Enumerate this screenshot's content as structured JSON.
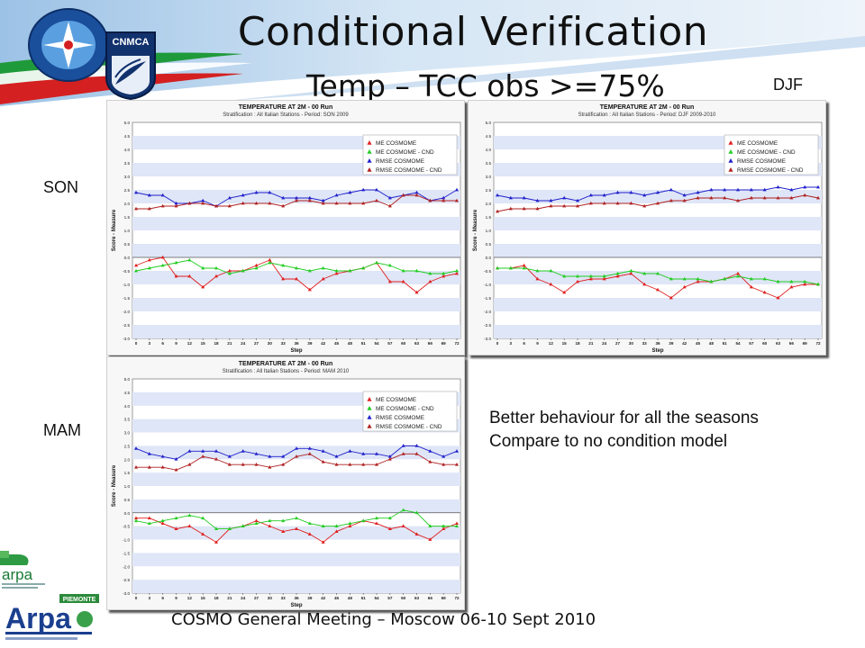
{
  "slide": {
    "title": "Conditional Verification",
    "subtitle": "Temp – TCC obs >=75%",
    "footer": "COSMO General Meeting – Moscow 06-10 Sept 2010",
    "note_lines": [
      "Better behaviour  for all the seasons",
      "Compare to no condition model"
    ],
    "season_labels": {
      "son": "SON",
      "djf": "DJF",
      "mam": "MAM"
    },
    "logos": {
      "cnmca": "CNMCA",
      "arpa": "arpa",
      "arpa_piemonte_top": "PIEMONTE",
      "arpa_piemonte_main": "Arpa"
    }
  },
  "colors": {
    "me": "#e02020",
    "me_cnd": "#22cc22",
    "rmse": "#2020cc",
    "rmse_cnd": "#b02020"
  },
  "chart_data": [
    {
      "type": "line",
      "title": "TEMPERATURE AT 2M - 00 Run",
      "subtitle": "Stratification : All Italian Stations - Period: SON 2009",
      "xlabel": "Step",
      "ylabel": "Score - Measure",
      "ylim": [
        -3.0,
        5.0
      ],
      "grid": true,
      "legend": "top-right",
      "x": [
        0,
        3,
        6,
        9,
        12,
        15,
        18,
        21,
        24,
        27,
        30,
        33,
        36,
        39,
        42,
        45,
        48,
        51,
        54,
        57,
        60,
        63,
        66,
        69,
        72
      ],
      "yticks": [
        "5.0",
        "4.5",
        "4.0",
        "3.5",
        "3.0",
        "2.5",
        "2.0",
        "1.5",
        "1.0",
        "0.5",
        "0.0",
        "-0.5",
        "-1.0",
        "-1.5",
        "-2.0",
        "-2.5",
        "-3.0"
      ],
      "series": [
        {
          "name": "ME COSMOME",
          "color": "#e02020",
          "values": [
            -0.3,
            -0.1,
            0.0,
            -0.7,
            -0.7,
            -1.1,
            -0.7,
            -0.5,
            -0.5,
            -0.3,
            -0.1,
            -0.8,
            -0.8,
            -1.2,
            -0.8,
            -0.6,
            -0.5,
            -0.4,
            -0.2,
            -0.9,
            -0.9,
            -1.3,
            -0.9,
            -0.7,
            -0.6
          ]
        },
        {
          "name": "ME COSMOME - CND",
          "color": "#22cc22",
          "values": [
            -0.5,
            -0.4,
            -0.3,
            -0.2,
            -0.1,
            -0.4,
            -0.4,
            -0.6,
            -0.5,
            -0.4,
            -0.2,
            -0.3,
            -0.4,
            -0.5,
            -0.4,
            -0.5,
            -0.5,
            -0.4,
            -0.2,
            -0.3,
            -0.5,
            -0.5,
            -0.6,
            -0.6,
            -0.5
          ]
        },
        {
          "name": "RMSE COSMOME",
          "color": "#2020cc",
          "values": [
            2.4,
            2.3,
            2.3,
            2.0,
            2.0,
            2.1,
            1.9,
            2.2,
            2.3,
            2.4,
            2.4,
            2.2,
            2.2,
            2.2,
            2.1,
            2.3,
            2.4,
            2.5,
            2.5,
            2.2,
            2.3,
            2.4,
            2.1,
            2.2,
            2.5
          ]
        },
        {
          "name": "RMSE COSMOME - CND",
          "color": "#b02020",
          "values": [
            1.8,
            1.8,
            1.9,
            1.9,
            2.0,
            2.0,
            1.9,
            1.9,
            2.0,
            2.0,
            2.0,
            1.9,
            2.1,
            2.1,
            2.0,
            2.0,
            2.0,
            2.0,
            2.1,
            1.9,
            2.3,
            2.3,
            2.1,
            2.1,
            2.1
          ]
        }
      ]
    },
    {
      "type": "line",
      "title": "TEMPERATURE AT 2M - 00 Run",
      "subtitle": "Stratification : All Italian Stations - Period: DJF 2009-2010",
      "xlabel": "Step",
      "ylabel": "Score - Measure",
      "ylim": [
        -3.0,
        5.0
      ],
      "grid": true,
      "legend": "top-right",
      "x": [
        0,
        3,
        6,
        9,
        12,
        15,
        18,
        21,
        24,
        27,
        30,
        33,
        36,
        39,
        42,
        45,
        48,
        51,
        54,
        57,
        60,
        63,
        66,
        69,
        72
      ],
      "yticks": [
        "5.0",
        "4.5",
        "4.0",
        "3.5",
        "3.0",
        "2.5",
        "2.0",
        "1.5",
        "1.0",
        "0.5",
        "0.0",
        "-0.5",
        "-1.0",
        "-1.5",
        "-2.0",
        "-2.5",
        "-3.0"
      ],
      "series": [
        {
          "name": "ME COSMOME",
          "color": "#e02020",
          "values": [
            -0.4,
            -0.4,
            -0.3,
            -0.8,
            -1.0,
            -1.3,
            -0.9,
            -0.8,
            -0.8,
            -0.7,
            -0.6,
            -1.0,
            -1.2,
            -1.5,
            -1.1,
            -0.9,
            -0.9,
            -0.8,
            -0.6,
            -1.1,
            -1.3,
            -1.5,
            -1.1,
            -1.0,
            -1.0
          ]
        },
        {
          "name": "ME COSMOME - CND",
          "color": "#22cc22",
          "values": [
            -0.4,
            -0.4,
            -0.4,
            -0.5,
            -0.5,
            -0.7,
            -0.7,
            -0.7,
            -0.7,
            -0.6,
            -0.5,
            -0.6,
            -0.6,
            -0.8,
            -0.8,
            -0.8,
            -0.9,
            -0.8,
            -0.7,
            -0.8,
            -0.8,
            -0.9,
            -0.9,
            -0.9,
            -1.0
          ]
        },
        {
          "name": "RMSE COSMOME",
          "color": "#2020cc",
          "values": [
            2.3,
            2.2,
            2.2,
            2.1,
            2.1,
            2.2,
            2.1,
            2.3,
            2.3,
            2.4,
            2.4,
            2.3,
            2.4,
            2.5,
            2.3,
            2.4,
            2.5,
            2.5,
            2.5,
            2.5,
            2.5,
            2.6,
            2.5,
            2.6,
            2.6
          ]
        },
        {
          "name": "RMSE COSMOME - CND",
          "color": "#b02020",
          "values": [
            1.7,
            1.8,
            1.8,
            1.8,
            1.9,
            1.9,
            1.9,
            2.0,
            2.0,
            2.0,
            2.0,
            1.9,
            2.0,
            2.1,
            2.1,
            2.2,
            2.2,
            2.2,
            2.1,
            2.2,
            2.2,
            2.2,
            2.2,
            2.3,
            2.2
          ]
        }
      ]
    },
    {
      "type": "line",
      "title": "TEMPERATURE AT 2M - 00 Run",
      "subtitle": "Stratification : All Italian Stations - Period: MAM 2010",
      "xlabel": "Step",
      "ylabel": "Score - Measure",
      "ylim": [
        -3.0,
        5.0
      ],
      "grid": true,
      "legend": "top-right",
      "x": [
        0,
        3,
        6,
        9,
        12,
        15,
        18,
        21,
        24,
        27,
        30,
        33,
        36,
        39,
        42,
        45,
        48,
        51,
        54,
        57,
        60,
        63,
        66,
        69,
        72
      ],
      "yticks": [
        "5.0",
        "4.5",
        "4.0",
        "3.5",
        "3.0",
        "2.5",
        "2.0",
        "1.5",
        "1.0",
        "0.5",
        "0.0",
        "-0.5",
        "-1.0",
        "-1.5",
        "-2.0",
        "-2.5",
        "-3.0"
      ],
      "series": [
        {
          "name": "ME COSMOME",
          "color": "#e02020",
          "values": [
            -0.2,
            -0.2,
            -0.4,
            -0.6,
            -0.5,
            -0.8,
            -1.1,
            -0.6,
            -0.5,
            -0.3,
            -0.5,
            -0.7,
            -0.6,
            -0.8,
            -1.1,
            -0.7,
            -0.5,
            -0.3,
            -0.4,
            -0.6,
            -0.5,
            -0.8,
            -1.0,
            -0.6,
            -0.4
          ]
        },
        {
          "name": "ME COSMOME - CND",
          "color": "#22cc22",
          "values": [
            -0.3,
            -0.4,
            -0.3,
            -0.2,
            -0.1,
            -0.2,
            -0.6,
            -0.6,
            -0.5,
            -0.4,
            -0.3,
            -0.3,
            -0.2,
            -0.4,
            -0.5,
            -0.5,
            -0.4,
            -0.3,
            -0.2,
            -0.2,
            0.1,
            0.0,
            -0.5,
            -0.5,
            -0.5
          ]
        },
        {
          "name": "RMSE COSMOME",
          "color": "#2020cc",
          "values": [
            2.4,
            2.2,
            2.1,
            2.0,
            2.3,
            2.3,
            2.3,
            2.1,
            2.3,
            2.2,
            2.1,
            2.1,
            2.4,
            2.4,
            2.3,
            2.1,
            2.3,
            2.2,
            2.2,
            2.1,
            2.5,
            2.5,
            2.3,
            2.1,
            2.3
          ]
        },
        {
          "name": "RMSE COSMOME - CND",
          "color": "#b02020",
          "values": [
            1.7,
            1.7,
            1.7,
            1.6,
            1.8,
            2.1,
            2.0,
            1.8,
            1.8,
            1.8,
            1.7,
            1.8,
            2.1,
            2.2,
            1.9,
            1.8,
            1.8,
            1.8,
            1.8,
            2.0,
            2.2,
            2.2,
            1.9,
            1.8,
            1.8
          ]
        }
      ]
    }
  ]
}
